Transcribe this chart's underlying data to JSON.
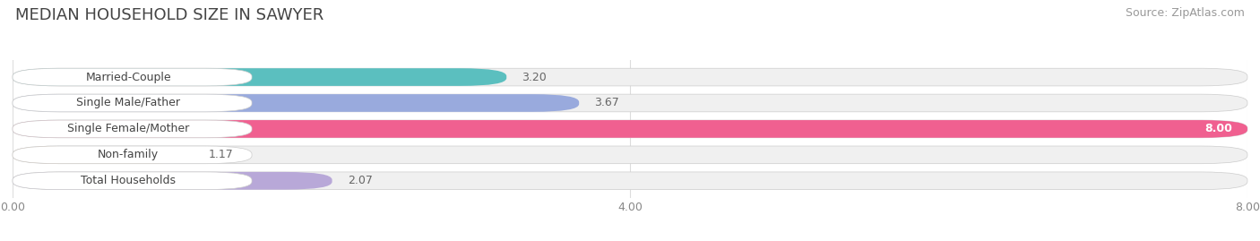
{
  "title": "MEDIAN HOUSEHOLD SIZE IN SAWYER",
  "source": "Source: ZipAtlas.com",
  "categories": [
    "Married-Couple",
    "Single Male/Father",
    "Single Female/Mother",
    "Non-family",
    "Total Households"
  ],
  "values": [
    3.2,
    3.67,
    8.0,
    1.17,
    2.07
  ],
  "bar_colors": [
    "#5BBFBF",
    "#99AADD",
    "#F06090",
    "#F5C99A",
    "#B8A8D8"
  ],
  "xlim": [
    0,
    8.0
  ],
  "xticks": [
    0.0,
    4.0,
    8.0
  ],
  "xtick_labels": [
    "0.00",
    "4.00",
    "8.00"
  ],
  "title_fontsize": 13,
  "source_fontsize": 9,
  "label_fontsize": 9,
  "value_fontsize": 9,
  "bar_height": 0.68,
  "background_color": "#FFFFFF",
  "bar_bg_color": "#F0F0F0",
  "grid_color": "#DDDDDD",
  "label_bg_color": "#FFFFFF"
}
